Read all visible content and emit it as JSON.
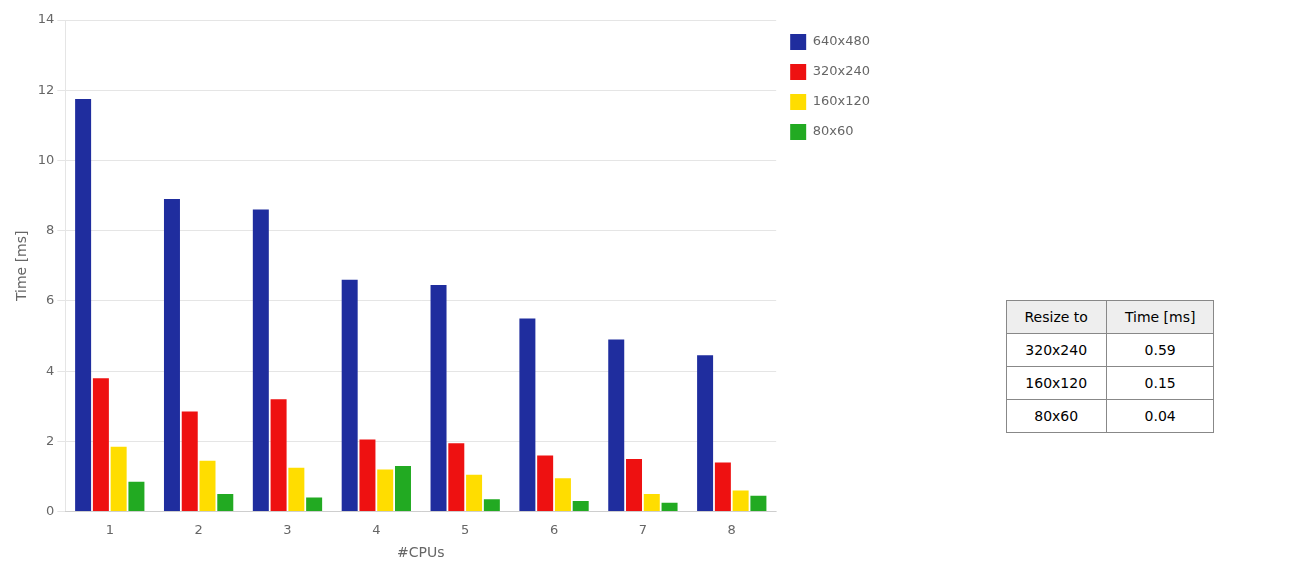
{
  "chart_data": {
    "type": "bar",
    "xlabel": "#CPUs",
    "ylabel": "Time [ms]",
    "categories": [
      1,
      2,
      3,
      4,
      5,
      6,
      7,
      8
    ],
    "series": [
      {
        "name": "640x480",
        "color": "#1f2d9e",
        "values": [
          11.75,
          8.9,
          8.6,
          6.6,
          6.45,
          5.5,
          4.9,
          4.45
        ]
      },
      {
        "name": "320x240",
        "color": "#ee1111",
        "values": [
          3.8,
          2.85,
          3.2,
          2.05,
          1.95,
          1.6,
          1.5,
          1.4
        ]
      },
      {
        "name": "160x120",
        "color": "#ffdd00",
        "values": [
          1.85,
          1.45,
          1.25,
          1.2,
          1.05,
          0.95,
          0.5,
          0.6
        ]
      },
      {
        "name": "80x60",
        "color": "#22aa22",
        "values": [
          0.85,
          0.5,
          0.4,
          1.3,
          0.35,
          0.3,
          0.25,
          0.45
        ]
      }
    ],
    "ylim": [
      0,
      14
    ],
    "yticks": [
      0,
      2,
      4,
      6,
      8,
      10,
      12,
      14
    ],
    "grid": true,
    "legend": "right",
    "table": {
      "col_labels": [
        "Resize to",
        "Time [ms]"
      ],
      "rows": [
        [
          "320x240",
          "0.59"
        ],
        [
          "160x120",
          "0.15"
        ],
        [
          "80x60",
          "0.04"
        ]
      ]
    }
  }
}
